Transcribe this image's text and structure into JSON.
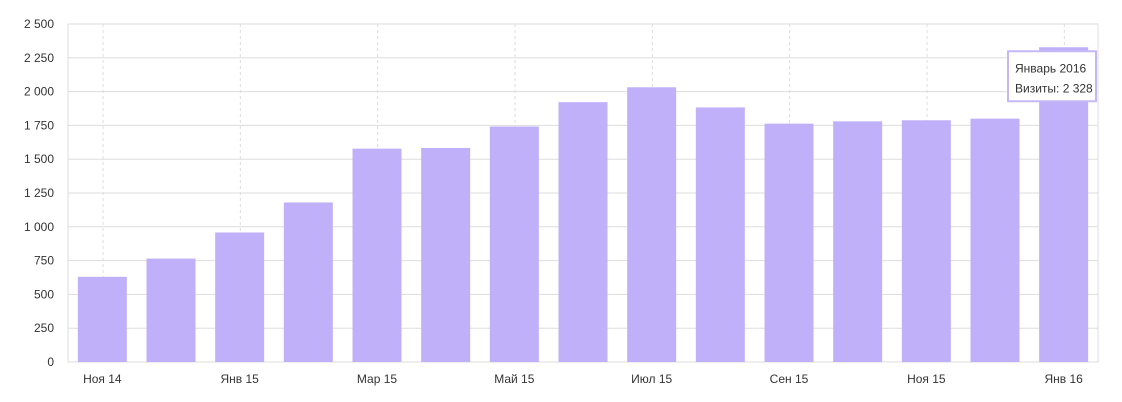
{
  "chart_data": {
    "type": "bar",
    "categories": [
      "2014-11",
      "2014-12",
      "2015-01",
      "2015-02",
      "2015-03",
      "2015-04",
      "2015-05",
      "2015-06",
      "2015-07",
      "2015-08",
      "2015-09",
      "2015-10",
      "2015-11",
      "2015-12",
      "2016-01"
    ],
    "series": [
      {
        "values": [
          630,
          765,
          958,
          1180,
          1578,
          1583,
          1742,
          1922,
          2032,
          1883,
          1763,
          1780,
          1788,
          1800,
          2328
        ]
      }
    ],
    "x_tick_labels": [
      "Ноя 14",
      "",
      "Янв 15",
      "",
      "Мар 15",
      "",
      "Май 15",
      "",
      "Июл 15",
      "",
      "Сен 15",
      "",
      "Ноя 15",
      "",
      "Янв 16"
    ],
    "y_ticks": [
      0,
      250,
      500,
      750,
      1000,
      1250,
      1500,
      1750,
      2000,
      2250,
      2500
    ],
    "y_tick_labels": [
      "0",
      "250",
      "500",
      "750",
      "1 000",
      "1 250",
      "1 500",
      "1 750",
      "2 000",
      "2 250",
      "2 500"
    ],
    "ylim": [
      0,
      2500
    ],
    "grid": true,
    "bar_color": "#c0b0f9",
    "tooltip": {
      "bar_index": 14,
      "line1": "Январь 2016",
      "line2": "Визиты: 2 328"
    }
  }
}
